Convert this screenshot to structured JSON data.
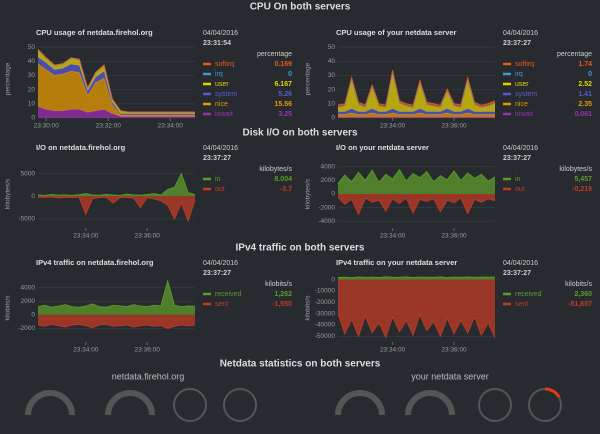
{
  "sections": [
    {
      "title": "CPU On both servers",
      "charts": [
        {
          "type": "stacked-area",
          "title": "CPU usage of netdata.firehol.org",
          "date": "04/04/2016",
          "time": "23:31:54",
          "unit": "percentage",
          "ylabel": "percentage",
          "ylim": [
            0,
            55
          ],
          "yticks": [
            0,
            10,
            20,
            30,
            40,
            50
          ],
          "xlim": [
            0,
            19
          ],
          "xticks": [
            {
              "value": 1,
              "label": "23:30:00"
            },
            {
              "value": 8.5,
              "label": "23:32:00"
            },
            {
              "value": 16,
              "label": "23:34:00"
            }
          ],
          "series": [
            {
              "name": "softirq",
              "color": "#e8591a",
              "legend_value": "0.169",
              "values": [
                0.5,
                0.5,
                0.4,
                0.4,
                0.5,
                0.5,
                0.3,
                0.4,
                0.5,
                0.3,
                0.2,
                0.2,
                0.2,
                0.2,
                0.2,
                0.2,
                0.2,
                0.2,
                0.2,
                0.2
              ]
            },
            {
              "name": "irq",
              "color": "#3a9bd5",
              "legend_value": "0",
              "values": [
                0,
                0,
                0,
                0,
                0,
                0,
                0,
                0,
                0,
                0,
                0,
                0,
                0,
                0,
                0,
                0,
                0,
                0,
                0,
                0
              ]
            },
            {
              "name": "user",
              "color": "#e5d200",
              "legend_value": "6.167",
              "values": [
                5,
                3,
                3,
                3,
                4,
                4,
                2,
                3,
                4,
                2,
                2,
                1,
                1,
                1,
                1,
                1,
                1,
                1,
                1,
                1
              ]
            },
            {
              "name": "system",
              "color": "#5a5ad0",
              "legend_value": "5.26",
              "values": [
                5,
                5,
                4,
                4,
                5,
                5,
                3,
                4,
                5,
                2,
                1,
                1,
                1,
                1,
                1,
                1,
                1,
                1,
                1,
                1
              ]
            },
            {
              "name": "nice",
              "color": "#e69a00",
              "legend_value": "15.56",
              "values": [
                30,
                28,
                25,
                26,
                27,
                26,
                12,
                20,
                22,
                6,
                1,
                1,
                1,
                1,
                1,
                1,
                1,
                1,
                1,
                1
              ]
            },
            {
              "name": "iowait",
              "color": "#9b2fae",
              "legend_value": "3.25",
              "values": [
                8,
                6,
                5,
                5,
                6,
                6,
                4,
                5,
                6,
                3,
                1,
                1,
                1,
                1,
                1,
                1,
                1,
                1,
                1,
                1
              ]
            }
          ]
        },
        {
          "type": "stacked-area",
          "title": "CPU usage of your netdata server",
          "date": "04/04/2016",
          "time": "23:37:27",
          "unit": "percentage",
          "ylabel": "percentage",
          "ylim": [
            0,
            55
          ],
          "yticks": [
            0,
            10,
            20,
            30,
            40,
            50
          ],
          "xlim": [
            0,
            23
          ],
          "xticks": [
            {
              "value": 8,
              "label": "23:34:00"
            },
            {
              "value": 17,
              "label": "23:36:00"
            }
          ],
          "series": [
            {
              "name": "softirq",
              "color": "#e8591a",
              "legend_value": "1.74",
              "values": [
                1.7,
                1.5,
                2,
                1.6,
                1.7,
                1.8,
                1.5,
                1.6,
                2,
                1.7,
                1.5,
                1.6,
                1.9,
                1.7,
                1.6,
                1.5,
                1.8,
                1.6,
                1.7,
                1.9,
                1.6,
                1.5,
                1.7,
                1.7
              ]
            },
            {
              "name": "irq",
              "color": "#3a9bd5",
              "legend_value": "0",
              "values": [
                0,
                0,
                0,
                0,
                0,
                0,
                0,
                0,
                0,
                0,
                0,
                0,
                0,
                0,
                0,
                0,
                0,
                0,
                0,
                0,
                0,
                0,
                0,
                0
              ]
            },
            {
              "name": "user",
              "color": "#e5d200",
              "legend_value": "2.52",
              "values": [
                3,
                4,
                20,
                5,
                3,
                15,
                4,
                3,
                25,
                6,
                4,
                3,
                18,
                5,
                4,
                3,
                12,
                4,
                3,
                20,
                5,
                3,
                4,
                6
              ]
            },
            {
              "name": "system",
              "color": "#5a5ad0",
              "legend_value": "1.41",
              "values": [
                2,
                2,
                3,
                2,
                2,
                3,
                2,
                2,
                3,
                2,
                2,
                2,
                3,
                2,
                2,
                2,
                3,
                2,
                2,
                3,
                2,
                2,
                2,
                2
              ]
            },
            {
              "name": "nice",
              "color": "#e69a00",
              "legend_value": "2.35",
              "values": [
                2,
                2,
                3,
                2,
                2,
                3,
                2,
                2,
                3,
                2,
                2,
                2,
                3,
                2,
                2,
                2,
                3,
                2,
                2,
                3,
                2,
                2,
                2,
                2
              ]
            },
            {
              "name": "iowait",
              "color": "#9b2fae",
              "legend_value": "0.061",
              "values": [
                0.5,
                0.5,
                0.6,
                0.5,
                0.5,
                0.6,
                0.5,
                0.5,
                0.6,
                0.5,
                0.5,
                0.5,
                0.6,
                0.5,
                0.5,
                0.5,
                0.6,
                0.5,
                0.5,
                0.6,
                0.5,
                0.5,
                0.5,
                0.5
              ]
            }
          ]
        }
      ]
    },
    {
      "title": "Disk I/O on both servers",
      "charts": [
        {
          "type": "area",
          "title": "I/O on netdata.firehol.org",
          "date": "04/04/2016",
          "time": "23:37:27",
          "unit": "kilobytes/s",
          "ylabel": "kilobytes/s",
          "ylim": [
            -7000,
            8000
          ],
          "yticks": [
            -5000,
            0,
            5000
          ],
          "xlim": [
            0,
            23
          ],
          "xticks": [
            {
              "value": 7,
              "label": "23:34:00"
            },
            {
              "value": 16,
              "label": "23:36:00"
            }
          ],
          "series": [
            {
              "name": "in",
              "color": "#5d9c28",
              "legend_value": "8.004",
              "values": [
                300,
                200,
                400,
                250,
                300,
                200,
                350,
                600,
                300,
                250,
                400,
                300,
                200,
                500,
                300,
                250,
                400,
                600,
                300,
                1500,
                2000,
                5000,
                800,
                400
              ]
            },
            {
              "name": "out",
              "color": "#c23b22",
              "legend_value": "-3.7",
              "values": [
                -200,
                -300,
                -150,
                -400,
                -250,
                -300,
                -200,
                -4000,
                -500,
                -300,
                -200,
                -1500,
                -300,
                -250,
                -400,
                -2500,
                -300,
                -600,
                -1000,
                -2000,
                -5000,
                -1500,
                -5500,
                -800
              ]
            }
          ]
        },
        {
          "type": "area",
          "title": "I/O on your netdata server",
          "date": "04/04/2016",
          "time": "23:37:27",
          "unit": "kilobytes/s",
          "ylabel": "kilobytes/s",
          "ylim": [
            -5000,
            5000
          ],
          "yticks": [
            -4000,
            -2000,
            0,
            2000,
            4000
          ],
          "xlim": [
            0,
            23
          ],
          "xticks": [
            {
              "value": 8,
              "label": "23:34:00"
            },
            {
              "value": 17,
              "label": "23:36:00"
            }
          ],
          "series": [
            {
              "name": "in",
              "color": "#5d9c28",
              "legend_value": "5,457",
              "values": [
                1500,
                2800,
                1800,
                3200,
                2000,
                3500,
                1700,
                2900,
                2200,
                3600,
                1900,
                3000,
                2400,
                3300,
                1800,
                2700,
                2100,
                3400,
                2000,
                3100,
                2300,
                2900,
                1900,
                2500
              ]
            },
            {
              "name": "out",
              "color": "#c23b22",
              "legend_value": "-0,219",
              "values": [
                -500,
                -1500,
                -800,
                -3000,
                -600,
                -1200,
                -900,
                -2500,
                -700,
                -1400,
                -600,
                -2800,
                -800,
                -1100,
                -700,
                -2600,
                -900,
                -1300,
                -600,
                -2900,
                -800,
                -1200,
                -700,
                -1000
              ]
            }
          ]
        }
      ]
    },
    {
      "title": "IPv4 traffic on both servers",
      "charts": [
        {
          "type": "area",
          "title": "IPv4 traffic on netdata.firehol.org",
          "date": "04/04/2016",
          "time": "23:37:27",
          "unit": "kilobits/s",
          "ylabel": "kilobits/s",
          "ylim": [
            -4000,
            6000
          ],
          "yticks": [
            -2000,
            0,
            2000,
            4000
          ],
          "xlim": [
            0,
            23
          ],
          "xticks": [
            {
              "value": 7,
              "label": "23:34:00"
            },
            {
              "value": 16,
              "label": "23:36:00"
            }
          ],
          "series": [
            {
              "name": "received",
              "color": "#5d9c28",
              "legend_value": "1,262",
              "values": [
                1200,
                1400,
                1100,
                1300,
                1500,
                1200,
                1100,
                1300,
                1600,
                1200,
                1100,
                1400,
                1300,
                1200,
                1500,
                1300,
                1200,
                1400,
                1300,
                5000,
                1400,
                1200,
                1300,
                1250
              ]
            },
            {
              "name": "sent",
              "color": "#c23b22",
              "legend_value": "-1,550",
              "values": [
                -1500,
                -1700,
                -1400,
                -1600,
                -1800,
                -1500,
                -1400,
                -1600,
                -1900,
                -1500,
                -1400,
                -1700,
                -1600,
                -1500,
                -1800,
                -1600,
                -1500,
                -1700,
                -1600,
                -2000,
                -1700,
                -1500,
                -1600,
                -1550
              ]
            }
          ]
        },
        {
          "type": "area",
          "title": "IPv4 traffic on your netdata server",
          "date": "04/04/2016",
          "time": "23:37:27",
          "unit": "kilobits/s",
          "ylabel": "kilobits/s",
          "ylim": [
            -55000,
            5000
          ],
          "yticks": [
            -50000,
            -40000,
            -30000,
            -20000,
            -10000,
            0
          ],
          "xlim": [
            0,
            23
          ],
          "xticks": [
            {
              "value": 8,
              "label": "23:34:00"
            },
            {
              "value": 17,
              "label": "23:36:00"
            }
          ],
          "series": [
            {
              "name": "received",
              "color": "#5d9c28",
              "legend_value": "2,360",
              "values": [
                2000,
                2200,
                1900,
                2400,
                2100,
                2300,
                2000,
                2500,
                2200,
                2100,
                2400,
                2000,
                2300,
                2200,
                2100,
                2500,
                2000,
                2300,
                2200,
                2400,
                2100,
                2300,
                2200,
                2360
              ]
            },
            {
              "name": "sent",
              "color": "#c23b22",
              "legend_value": "-51,607",
              "values": [
                -30000,
                -48000,
                -35000,
                -50000,
                -32000,
                -47000,
                -38000,
                -51000,
                -33000,
                -46000,
                -36000,
                -49000,
                -31000,
                -45000,
                -37000,
                -50000,
                -34000,
                -48000,
                -36000,
                -47000,
                -33000,
                -49000,
                -38000,
                -51607
              ]
            }
          ]
        }
      ]
    }
  ],
  "stats": {
    "title": "Netdata statistics on both servers",
    "servers": [
      "netdata.firehol.org",
      "your netdata server"
    ]
  }
}
